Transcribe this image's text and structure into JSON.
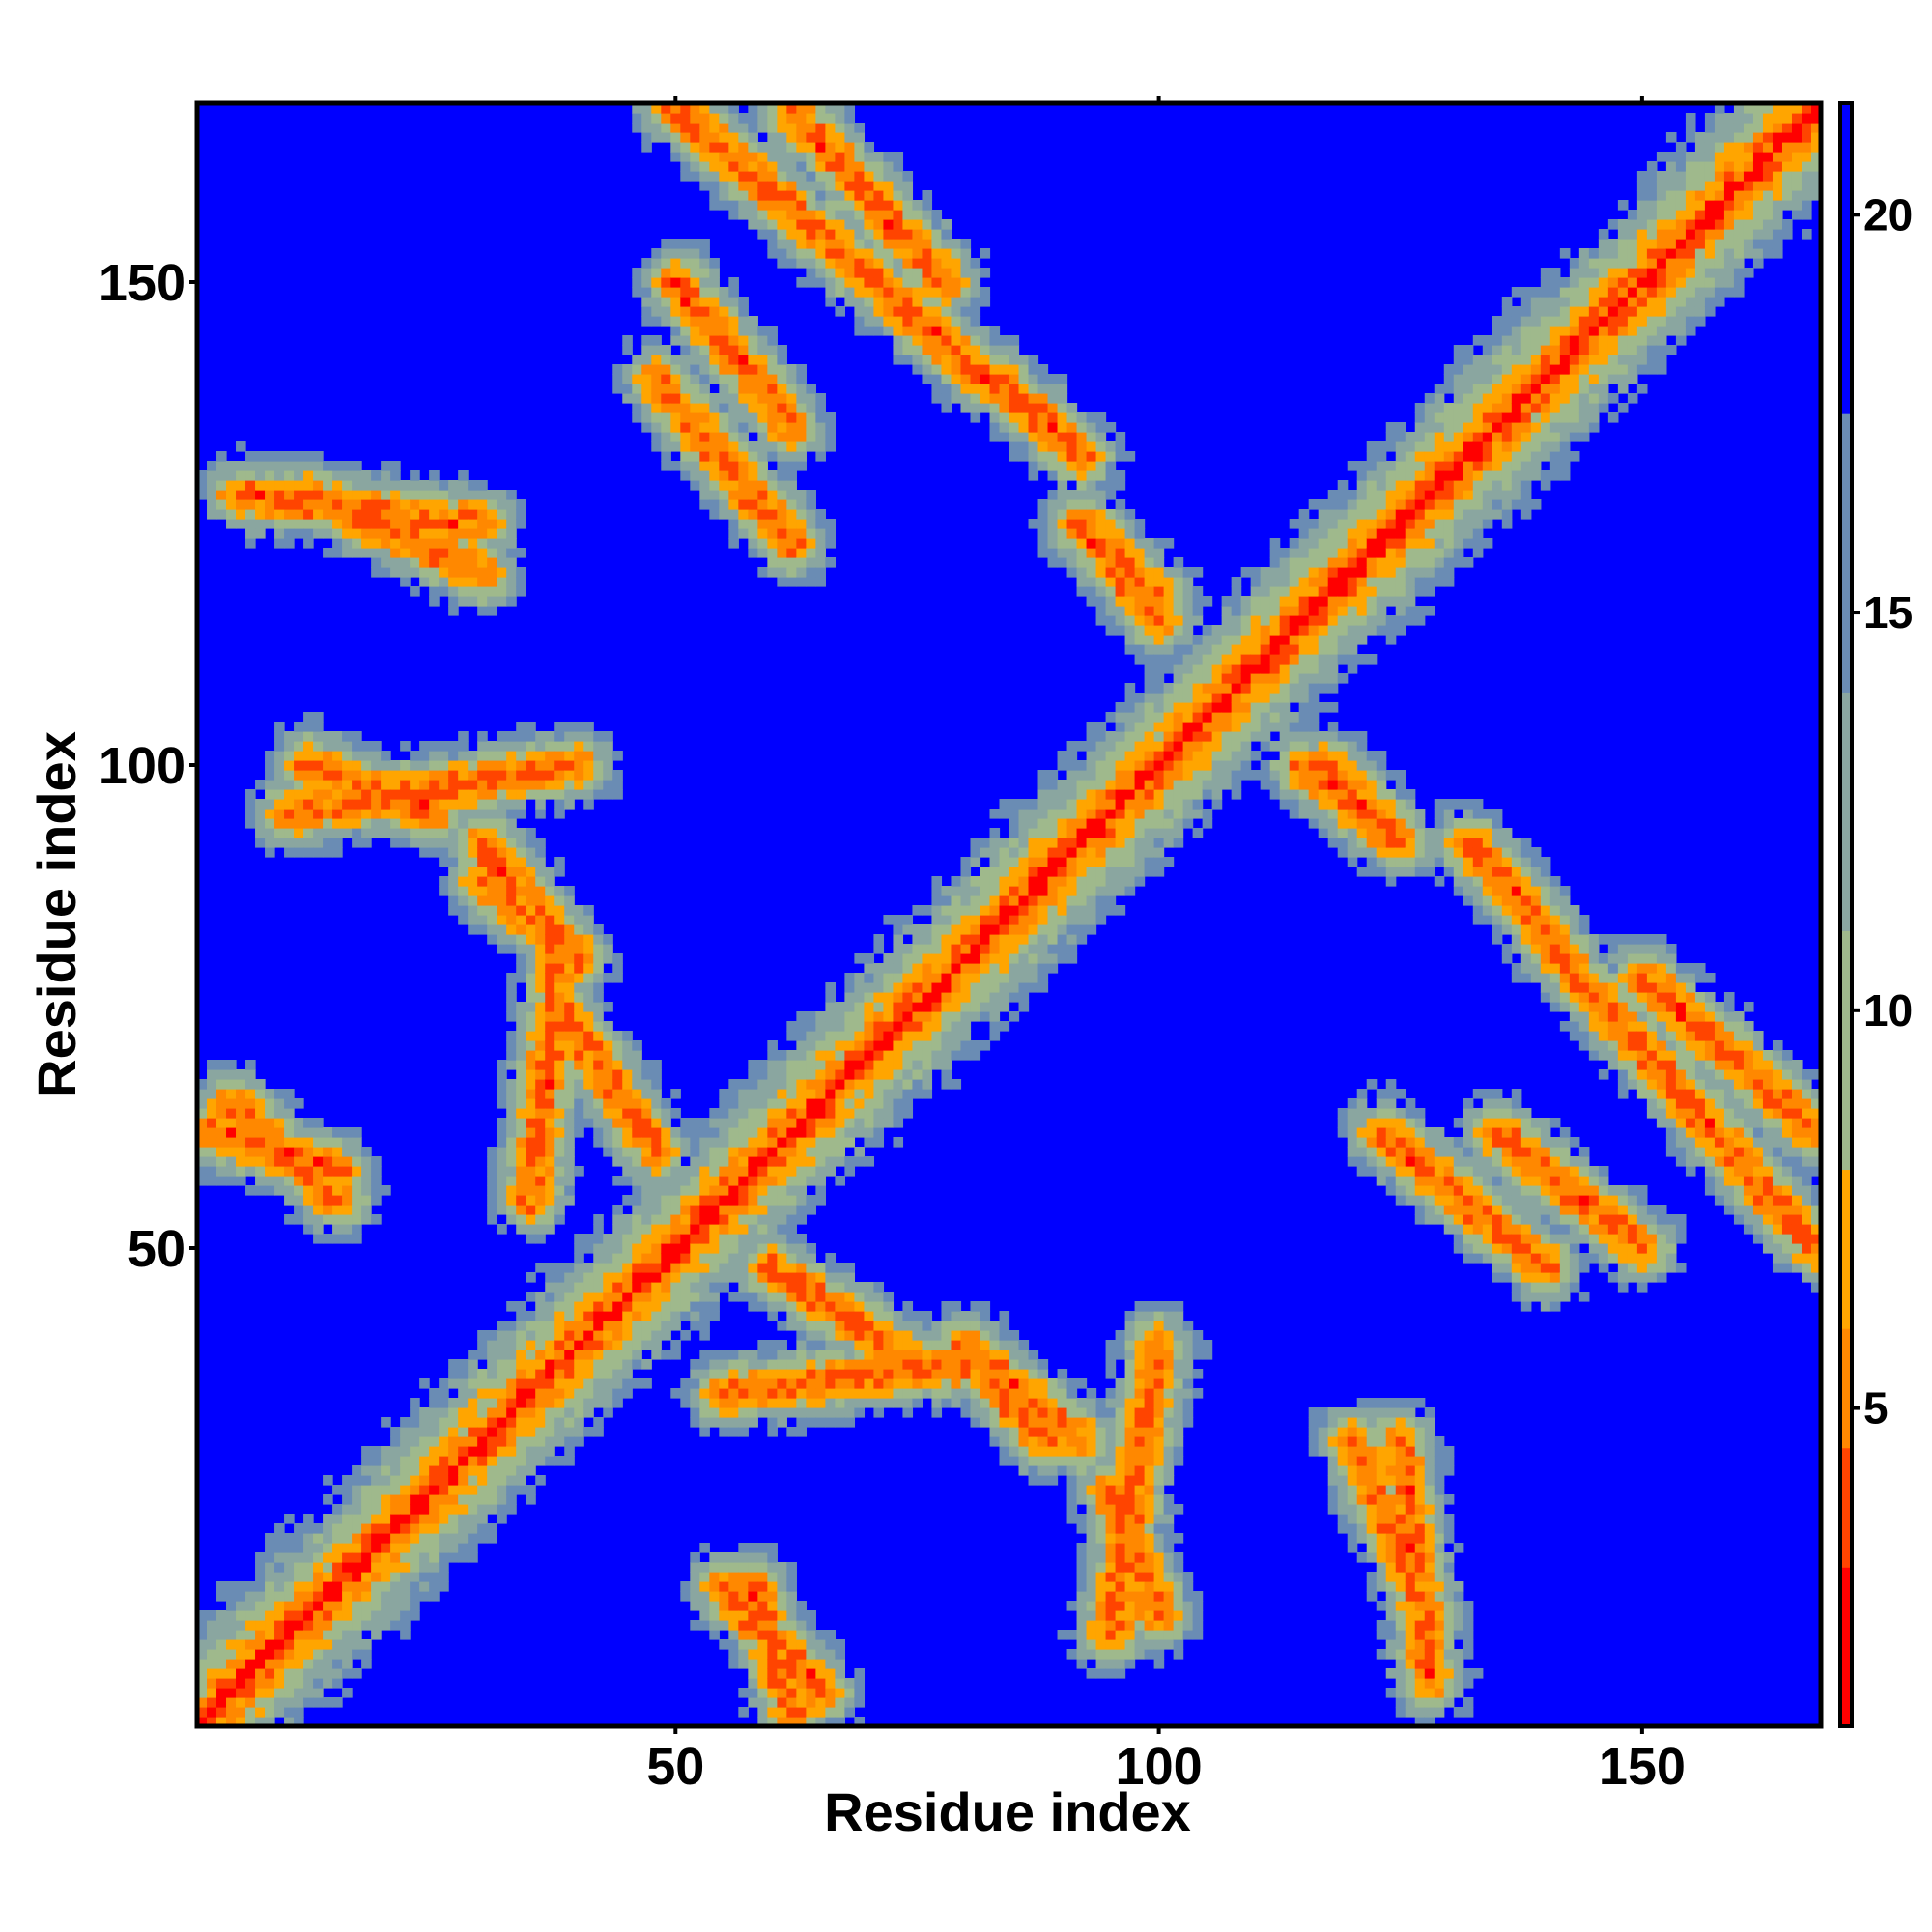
{
  "chart_data": {
    "type": "heatmap",
    "title": "",
    "xlabel": "Residue index",
    "ylabel": "Residue index",
    "n_residues": 168,
    "xlim": [
      1,
      168
    ],
    "ylim": [
      1,
      168
    ],
    "x_ticks": [
      50,
      100,
      150
    ],
    "y_ticks": [
      50,
      100,
      150
    ],
    "x_tick_labels": [
      "50",
      "100",
      "150"
    ],
    "y_tick_labels": [
      "50",
      "100",
      "150"
    ],
    "colorbar": {
      "range": [
        1,
        21.4
      ],
      "ticks": [
        5,
        10,
        15,
        20
      ],
      "tick_labels": [
        "5",
        "10",
        "15",
        "20"
      ],
      "colors": [
        "#ff0000",
        "#ff4400",
        "#ff8800",
        "#ffa500",
        "#9fb98c",
        "#8aa6a0",
        "#6a8cb4",
        "#0000ff"
      ]
    },
    "description_values": {
      "diagonal_distance": 2,
      "background_distance": 21
    },
    "contact_bands": [
      {
        "a": [
          37,
          54
        ],
        "b": [
          37,
          54
        ],
        "kind": "diagonal-block"
      },
      {
        "a": [
          55,
          90
        ],
        "b": [
          55,
          90
        ],
        "kind": "diagonal-block"
      },
      {
        "a": [
          105,
          125
        ],
        "b": [
          105,
          125
        ],
        "kind": "diagonal-block"
      },
      {
        "a": [
          140,
          168
        ],
        "b": [
          140,
          168
        ],
        "kind": "diagonal-block"
      },
      {
        "a": [
          50,
          62
        ],
        "b": [
          150,
          135
        ],
        "kind": "antiparallel"
      },
      {
        "a": [
          62,
          78
        ],
        "b": [
          168,
          150
        ],
        "kind": "antiparallel"
      },
      {
        "a": [
          83,
          92
        ],
        "b": [
          140,
          132
        ],
        "kind": "antiparallel"
      },
      {
        "a": [
          92,
          100
        ],
        "b": [
          125,
          117
        ],
        "kind": "antiparallel"
      },
      {
        "a": [
          30,
          40
        ],
        "b": [
          88,
          80
        ],
        "kind": "antiparallel"
      },
      {
        "a": [
          10,
          40
        ],
        "b": [
          95,
          100
        ],
        "kind": "parallel"
      },
      {
        "a": [
          5,
          30
        ],
        "b": [
          128,
          125
        ],
        "kind": "parallel"
      },
      {
        "a": [
          115,
          125
        ],
        "b": [
          100,
          92
        ],
        "kind": "antiparallel"
      },
      {
        "a": [
          123,
          140
        ],
        "b": [
          62,
          48
        ],
        "kind": "antiparallel"
      },
      {
        "a": [
          140,
          168
        ],
        "b": [
          82,
          50
        ],
        "kind": "antiparallel"
      },
      {
        "a": [
          82,
          92
        ],
        "b": [
          38,
          30
        ],
        "kind": "antiparallel"
      },
      {
        "a": [
          55,
          80
        ],
        "b": [
          35,
          38
        ],
        "kind": "parallel"
      },
      {
        "a": [
          2,
          15
        ],
        "b": [
          62,
          58
        ],
        "kind": "parallel"
      },
      {
        "a": [
          95,
          100
        ],
        "b": [
          25,
          12
        ],
        "kind": "parallel"
      },
      {
        "a": [
          120,
          128
        ],
        "b": [
          30,
          12
        ],
        "kind": "parallel"
      },
      {
        "a": [
          55,
          65
        ],
        "b": [
          15,
          4
        ],
        "kind": "parallel"
      },
      {
        "a": [
          38,
          48
        ],
        "b": [
          75,
          60
        ],
        "kind": "parallel"
      }
    ]
  }
}
